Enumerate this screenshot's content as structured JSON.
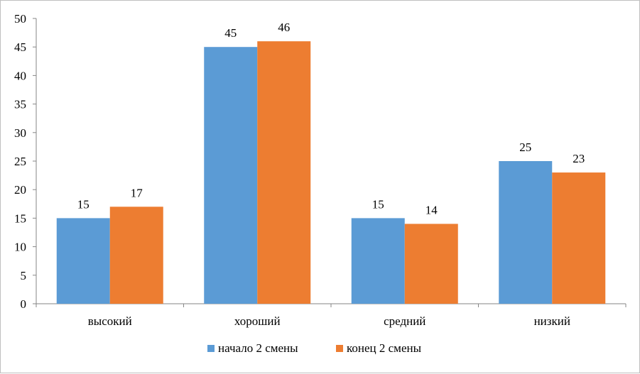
{
  "chart_data": {
    "type": "bar",
    "categories": [
      "высокий",
      "хороший",
      "средний",
      "низкий"
    ],
    "series": [
      {
        "name": "начало 2 смены",
        "values": [
          15,
          45,
          15,
          25
        ],
        "color": "#5b9bd5"
      },
      {
        "name": "конец 2 смены",
        "values": [
          17,
          46,
          14,
          23
        ],
        "color": "#ed7d31"
      }
    ],
    "ylim": [
      0,
      50
    ],
    "yticks": [
      0,
      5,
      10,
      15,
      20,
      25,
      30,
      35,
      40,
      45,
      50
    ],
    "title": "",
    "xlabel": "",
    "ylabel": "",
    "grid": false,
    "data_labels": true,
    "legend_position": "bottom",
    "axis_color": "#868686"
  }
}
